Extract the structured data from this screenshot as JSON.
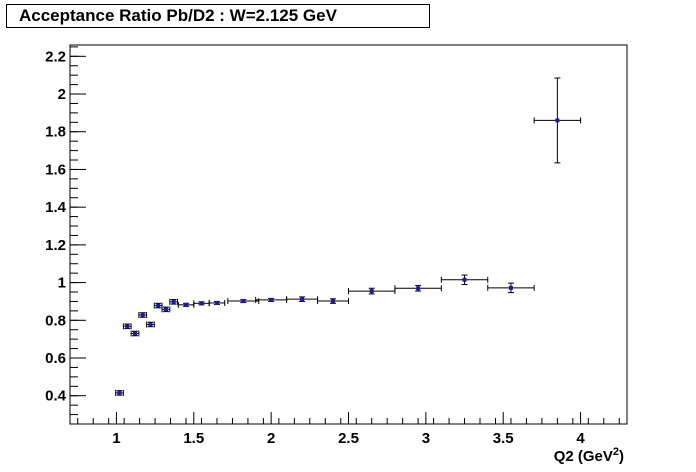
{
  "title": "Acceptance Ratio Pb/D2 : W=2.125 GeV",
  "colors": {
    "marker": "#1a1aa8",
    "axis": "#000000",
    "background": "#ffffff"
  },
  "chart_data": {
    "type": "scatter",
    "title": "Acceptance Ratio Pb/D2 : W=2.125 GeV",
    "xlabel": "Q2 (GeV",
    "xlabel_sup": "2",
    "xlabel_end": ")",
    "ylabel": "",
    "xlim": [
      0.7,
      4.3
    ],
    "ylim": [
      0.25,
      2.26
    ],
    "x_ticks": [
      1,
      1.5,
      2,
      2.5,
      3,
      3.5,
      4
    ],
    "x_tick_labels": [
      "1",
      "1.5",
      "2",
      "2.5",
      "3",
      "3.5",
      "4"
    ],
    "y_ticks": [
      0.4,
      0.6,
      0.8,
      1,
      1.2,
      1.4,
      1.6,
      1.8,
      2,
      2.2
    ],
    "y_tick_labels": [
      "0.4",
      "0.6",
      "0.8",
      "1",
      "1.2",
      "1.4",
      "1.6",
      "1.8",
      "2",
      "2.2"
    ],
    "grid": false,
    "legend": "none",
    "series": [
      {
        "points": [
          {
            "x": 1.02,
            "y": 0.415,
            "xerr": 0.025,
            "yerr": 0.012
          },
          {
            "x": 1.07,
            "y": 0.768,
            "xerr": 0.025,
            "yerr": 0.012
          },
          {
            "x": 1.12,
            "y": 0.73,
            "xerr": 0.025,
            "yerr": 0.012
          },
          {
            "x": 1.17,
            "y": 0.828,
            "xerr": 0.025,
            "yerr": 0.012
          },
          {
            "x": 1.22,
            "y": 0.778,
            "xerr": 0.025,
            "yerr": 0.012
          },
          {
            "x": 1.27,
            "y": 0.878,
            "xerr": 0.025,
            "yerr": 0.012
          },
          {
            "x": 1.32,
            "y": 0.858,
            "xerr": 0.025,
            "yerr": 0.012
          },
          {
            "x": 1.37,
            "y": 0.898,
            "xerr": 0.025,
            "yerr": 0.012
          },
          {
            "x": 1.45,
            "y": 0.882,
            "xerr": 0.05,
            "yerr": 0.008
          },
          {
            "x": 1.55,
            "y": 0.89,
            "xerr": 0.05,
            "yerr": 0.008
          },
          {
            "x": 1.65,
            "y": 0.892,
            "xerr": 0.05,
            "yerr": 0.008
          },
          {
            "x": 1.82,
            "y": 0.902,
            "xerr": 0.1,
            "yerr": 0.008
          },
          {
            "x": 2.0,
            "y": 0.908,
            "xerr": 0.1,
            "yerr": 0.008
          },
          {
            "x": 2.2,
            "y": 0.912,
            "xerr": 0.1,
            "yerr": 0.012
          },
          {
            "x": 2.4,
            "y": 0.902,
            "xerr": 0.1,
            "yerr": 0.012
          },
          {
            "x": 2.65,
            "y": 0.955,
            "xerr": 0.15,
            "yerr": 0.015
          },
          {
            "x": 2.95,
            "y": 0.97,
            "xerr": 0.15,
            "yerr": 0.015
          },
          {
            "x": 3.25,
            "y": 1.015,
            "xerr": 0.15,
            "yerr": 0.025
          },
          {
            "x": 3.55,
            "y": 0.972,
            "xerr": 0.15,
            "yerr": 0.025
          },
          {
            "x": 3.85,
            "y": 1.86,
            "xerr": 0.15,
            "yerr": 0.225
          }
        ]
      }
    ]
  }
}
